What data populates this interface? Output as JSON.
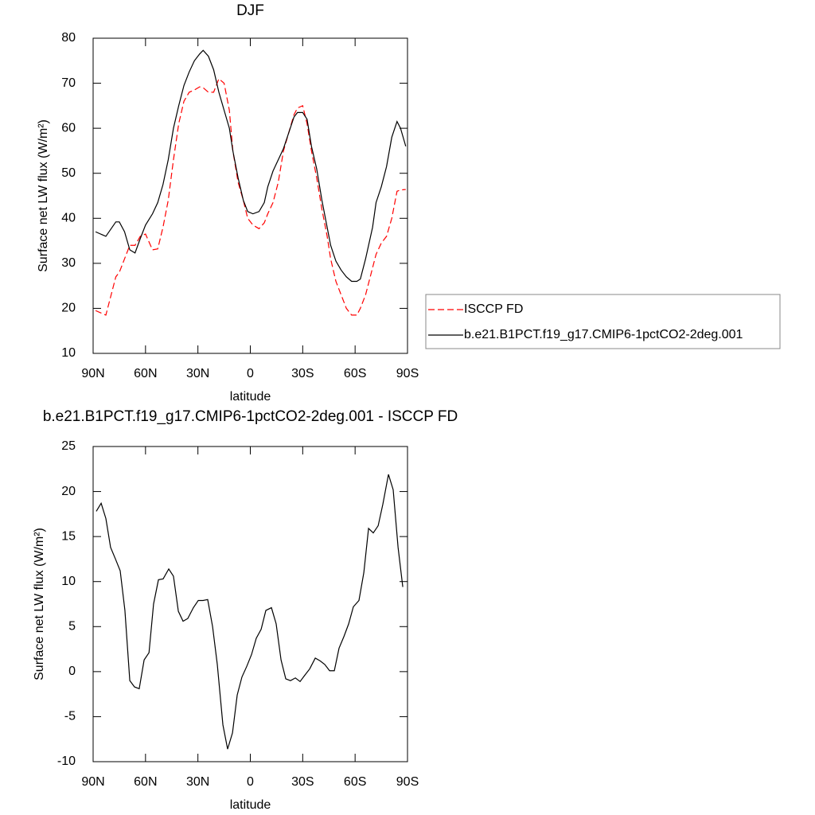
{
  "chart_data": [
    {
      "type": "line",
      "title": "DJF",
      "x_label": "latitude",
      "y_label": "Surface net LW flux (W/m²)",
      "xlim": [
        90,
        -90
      ],
      "xticks": [
        {
          "value": 90,
          "label": "90N"
        },
        {
          "value": 60,
          "label": "60N"
        },
        {
          "value": 30,
          "label": "30N"
        },
        0,
        {
          "value": -30,
          "label": "30S"
        },
        {
          "value": -60,
          "label": "60S"
        },
        {
          "value": -90,
          "label": "90S"
        }
      ],
      "ylim": [
        10,
        80
      ],
      "yticks": [
        10,
        20,
        30,
        40,
        50,
        60,
        70,
        80
      ],
      "legend": "right",
      "x": [
        88.6,
        82.7,
        77,
        75,
        72,
        69,
        66,
        63,
        60,
        56,
        53,
        50,
        47,
        44,
        41,
        38,
        35,
        32,
        29,
        27,
        24,
        21,
        18,
        15,
        12,
        10,
        7,
        4,
        1.5,
        -1.5,
        -5,
        -8,
        -10,
        -13,
        -16,
        -19,
        -22,
        -25,
        -27,
        -30,
        -32.5,
        -35,
        -38,
        -41,
        -44,
        -46,
        -49,
        -52,
        -55,
        -58,
        -61,
        -63,
        -66,
        -70,
        -72,
        -75,
        -78,
        -81,
        -84,
        -86,
        -89
      ],
      "series": [
        {
          "name": "ISCCP FD",
          "color": "#ff0000",
          "line_style": "dashed",
          "values": [
            19.5,
            18.5,
            27,
            28,
            31,
            34,
            34,
            36,
            36.5,
            33,
            33.2,
            38,
            44,
            53,
            61,
            66,
            68,
            68.5,
            69.2,
            69,
            68,
            68,
            71,
            70,
            64,
            55,
            48,
            44,
            40,
            38.5,
            37.7,
            39,
            41,
            43.5,
            48,
            55,
            59,
            63,
            64.5,
            65,
            61,
            55,
            49,
            42,
            36,
            31,
            26,
            23,
            20,
            18.5,
            18.5,
            20,
            23,
            29,
            32,
            34.5,
            36,
            40,
            46,
            46.3,
            46.4
          ]
        },
        {
          "name": "b.e21.B1PCT.f19_g17.CMIP6-1pctCO2-2deg.001",
          "color": "#000000",
          "line_style": "solid",
          "values": [
            37,
            36,
            39.2,
            39.2,
            37,
            33,
            32.3,
            35.5,
            38.5,
            41,
            43.5,
            47.5,
            53,
            60,
            65,
            69.5,
            72.5,
            75,
            76.5,
            77.3,
            76,
            73,
            68,
            64,
            60,
            55,
            49,
            44,
            41.5,
            41,
            41.5,
            43.5,
            47,
            50.5,
            53,
            55.5,
            59,
            62.5,
            63.5,
            63.5,
            62,
            56,
            51,
            44,
            38,
            34,
            30.5,
            28.5,
            27,
            26,
            26,
            26.5,
            31,
            38,
            43.5,
            47,
            51.5,
            58,
            61.5,
            60,
            56
          ]
        }
      ]
    },
    {
      "type": "line",
      "title": "b.e21.B1PCT.f19_g17.CMIP6-1pctCO2-2deg.001 - ISCCP FD",
      "x_label": "latitude",
      "y_label": "Surface net LW flux (W/m²)",
      "xlim": [
        90,
        -90
      ],
      "xticks": [
        {
          "value": 90,
          "label": "90N"
        },
        {
          "value": 60,
          "label": "60N"
        },
        {
          "value": 30,
          "label": "30N"
        },
        0,
        {
          "value": -30,
          "label": "30S"
        },
        {
          "value": -60,
          "label": "60S"
        },
        {
          "value": -90,
          "label": "90S"
        }
      ],
      "ylim": [
        -10,
        25
      ],
      "yticks": [
        -10,
        -5,
        0,
        5,
        10,
        15,
        20,
        25
      ],
      "x": [
        88.2,
        85.4,
        82.7,
        80,
        77.2,
        74.5,
        71.8,
        69,
        66.3,
        63.6,
        60.8,
        58,
        55.4,
        52.6,
        49.9,
        46.7,
        44,
        41.2,
        38.5,
        35.8,
        32.6,
        29.8,
        27.1,
        24.4,
        21.6,
        18.9,
        15.7,
        13,
        10.2,
        7.5,
        4.8,
        2,
        -0.7,
        -3.4,
        -6.2,
        -8.9,
        -12.1,
        -14.8,
        -17.6,
        -20.3,
        -23,
        -25.8,
        -28.5,
        -31.2,
        -34,
        -37.2,
        -39.9,
        -42.6,
        -45.4,
        -48.1,
        -50.8,
        -53.6,
        -56.3,
        -59,
        -62.2,
        -65,
        -67.7,
        -70.4,
        -73.2,
        -75.9,
        -79.1,
        -81.8,
        -84.6,
        -87.3
      ],
      "series": [
        {
          "color": "#000000",
          "line_style": "solid",
          "values": [
            17.8,
            18.7,
            17,
            13.8,
            12.5,
            11.2,
            6.8,
            -1,
            -1.7,
            -1.9,
            1.3,
            2.1,
            7.5,
            10.2,
            10.3,
            11.4,
            10.6,
            6.7,
            5.6,
            5.9,
            7.1,
            7.9,
            7.9,
            8,
            5,
            0.8,
            -5.9,
            -8.6,
            -6.8,
            -2.6,
            -0.6,
            0.6,
            1.9,
            3.7,
            4.7,
            6.8,
            7.1,
            5.3,
            1.3,
            -0.8,
            -1,
            -0.7,
            -1.1,
            -0.4,
            0.3,
            1.5,
            1.2,
            0.8,
            0.1,
            0.1,
            2.6,
            3.9,
            5.3,
            7.2,
            7.9,
            11,
            15.9,
            15.4,
            16.2,
            18.6,
            21.9,
            20.2,
            13.8,
            9.4
          ]
        }
      ]
    }
  ]
}
